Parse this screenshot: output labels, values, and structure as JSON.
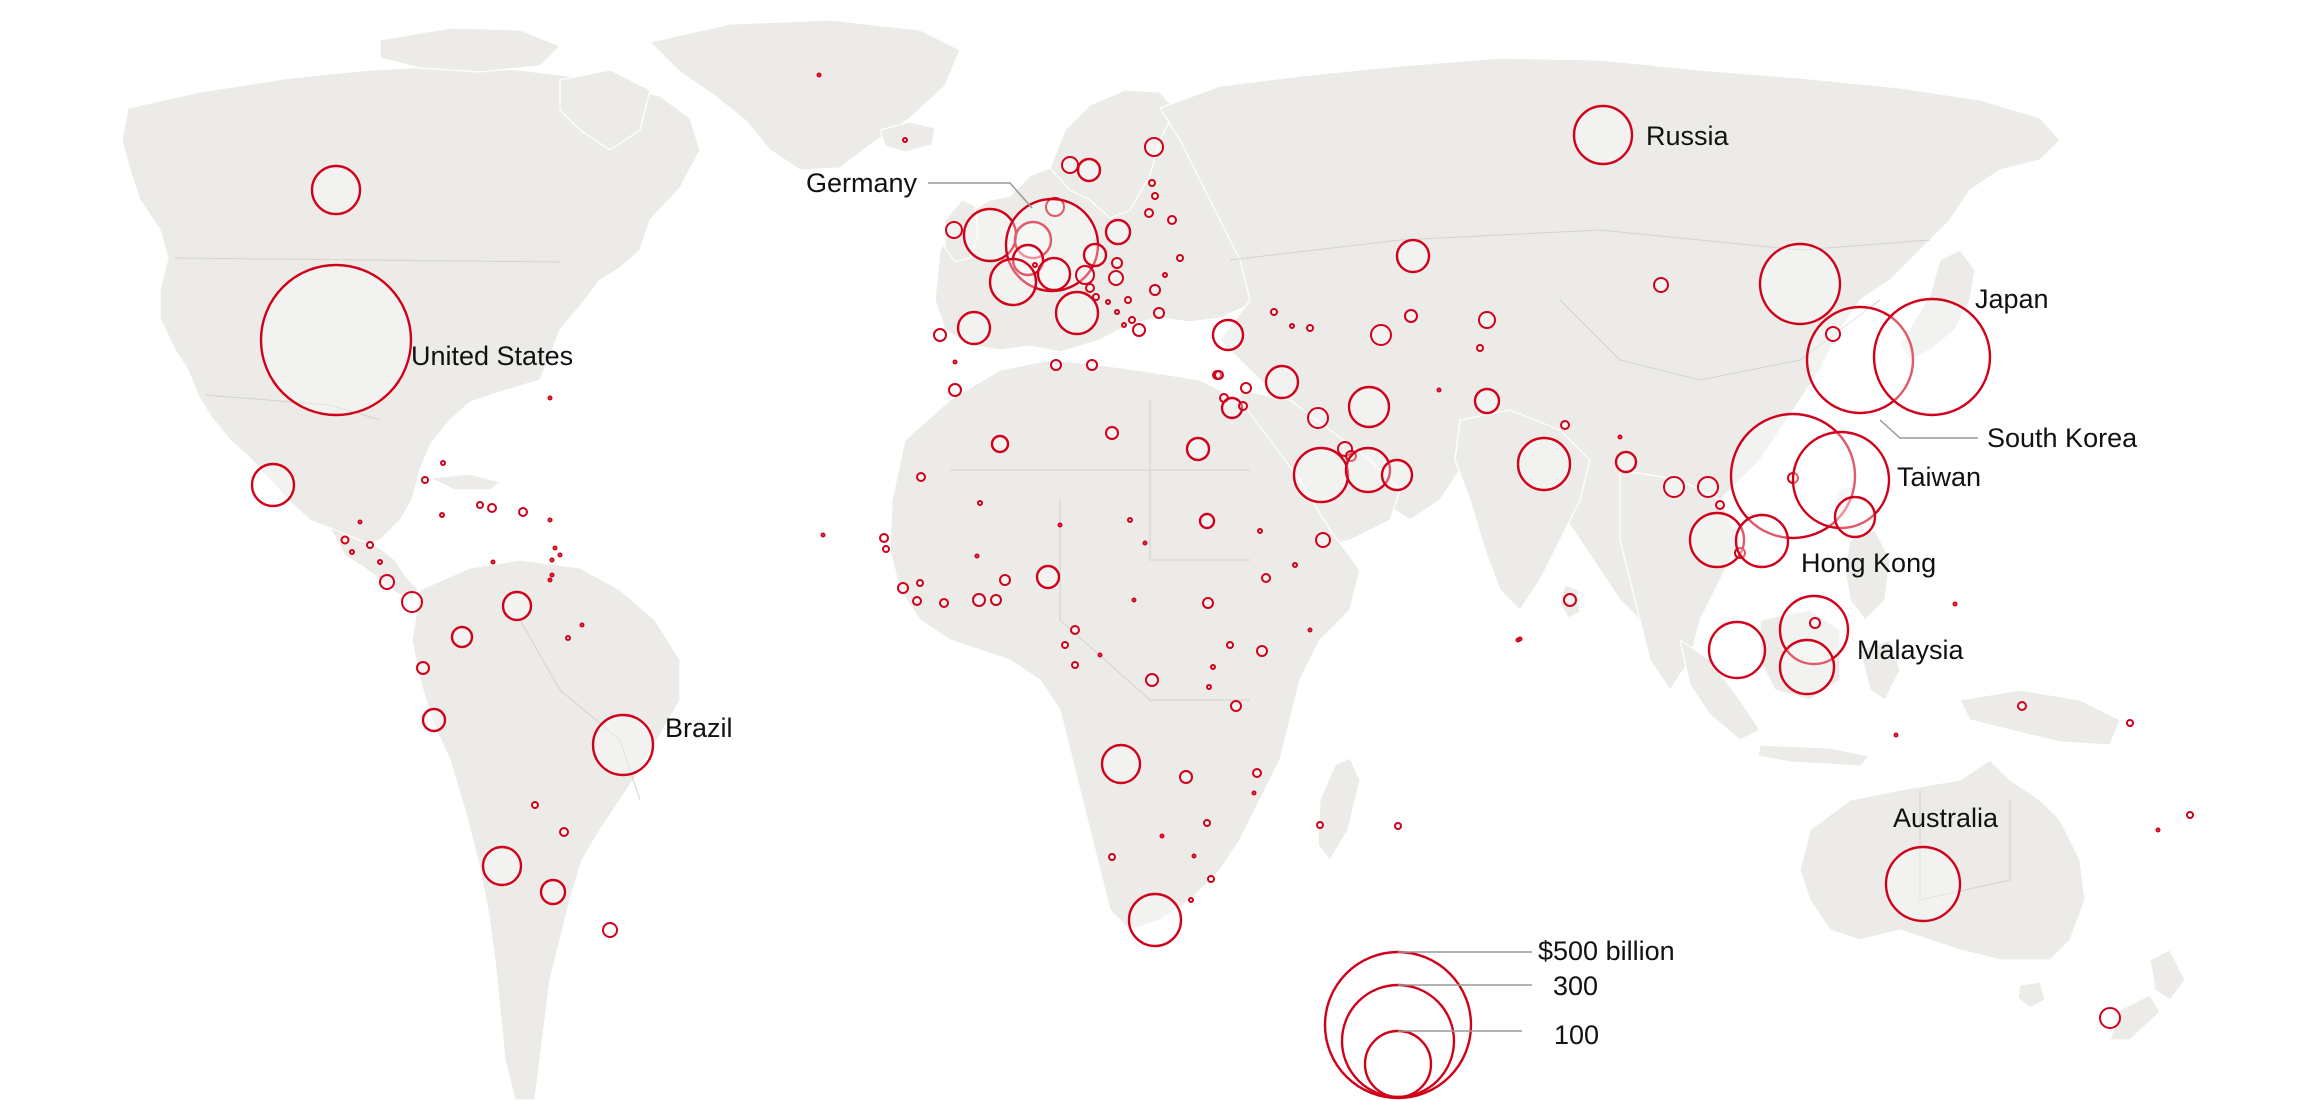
{
  "map": {
    "colors": {
      "land": "#ecebe8",
      "bubble_stroke": "#d0021b",
      "leader": "#999999"
    },
    "labels": {
      "united_states": "United States",
      "brazil": "Brazil",
      "germany": "Germany",
      "russia": "Russia",
      "japan": "Japan",
      "south_korea": "South Korea",
      "taiwan": "Taiwan",
      "hong_kong": "Hong Kong",
      "malaysia": "Malaysia",
      "australia": "Australia"
    }
  },
  "legend": {
    "values": [
      "$500 billion",
      "300",
      "100"
    ]
  }
}
